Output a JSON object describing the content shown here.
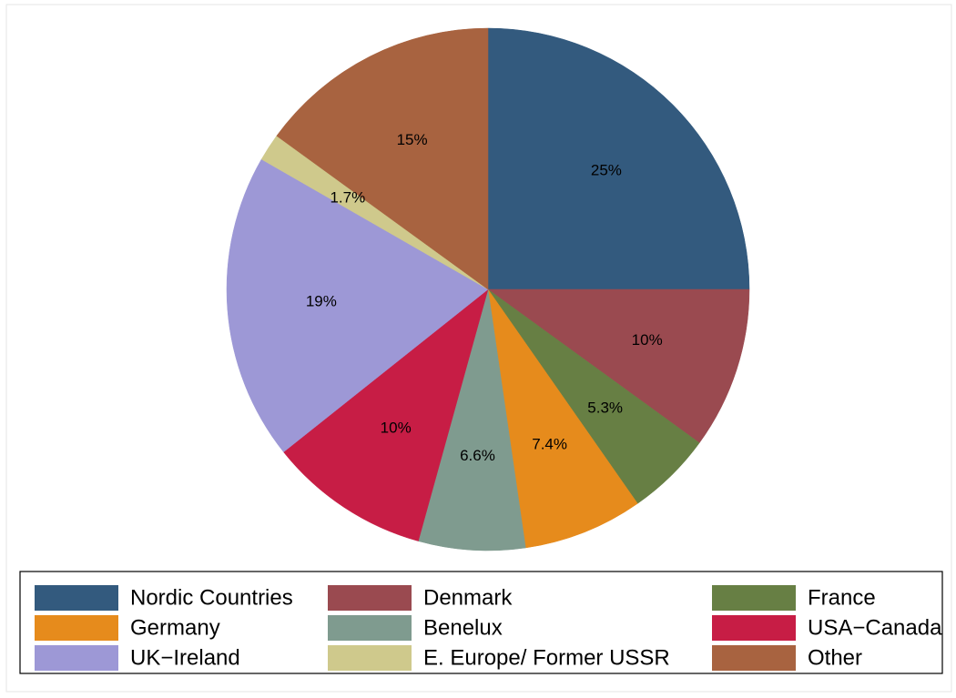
{
  "chart_data": {
    "type": "pie",
    "categories": [
      "Nordic Countries",
      "Denmark",
      "France",
      "Germany",
      "Benelux",
      "USA−Canada",
      "UK−Ireland",
      "E. Europe/ Former USSR",
      "Other"
    ],
    "values": [
      25,
      10,
      5.3,
      7.4,
      6.6,
      10,
      19,
      1.7,
      15
    ],
    "value_labels": [
      "25%",
      "10%",
      "5.3%",
      "7.4%",
      "6.6%",
      "10%",
      "19%",
      "1.7%",
      "15%"
    ],
    "colors": [
      "#335a7e",
      "#9a4a50",
      "#677f44",
      "#e68b1c",
      "#7f9b8f",
      "#c71d45",
      "#9d98d6",
      "#cfc98c",
      "#a86340"
    ],
    "legend": "bottom"
  }
}
